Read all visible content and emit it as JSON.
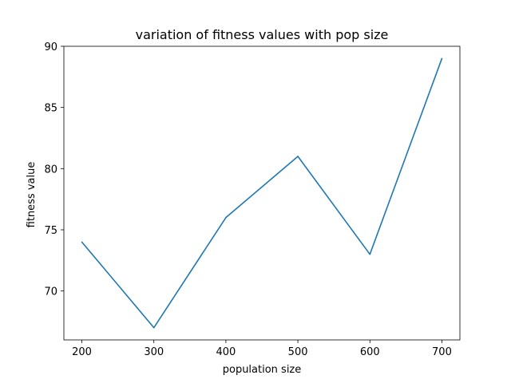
{
  "chart_data": {
    "type": "line",
    "title": "variation of fitness values with pop size",
    "xlabel": "population size",
    "ylabel": "fitness value",
    "x": [
      200,
      300,
      400,
      500,
      600,
      700
    ],
    "series": [
      {
        "values": [
          74,
          67,
          76,
          81,
          73,
          89
        ],
        "color": "#1f77b4"
      }
    ],
    "xlim": [
      175,
      725
    ],
    "ylim": [
      66.0,
      90.0
    ],
    "xticks": [
      200,
      300,
      400,
      500,
      600,
      700
    ],
    "xtick_labels": [
      "200",
      "300",
      "400",
      "500",
      "600",
      "700"
    ],
    "yticks": [
      70,
      75,
      80,
      85,
      90
    ],
    "ytick_labels": [
      "70",
      "75",
      "80",
      "85",
      "90"
    ],
    "grid": false,
    "legend": "none"
  }
}
